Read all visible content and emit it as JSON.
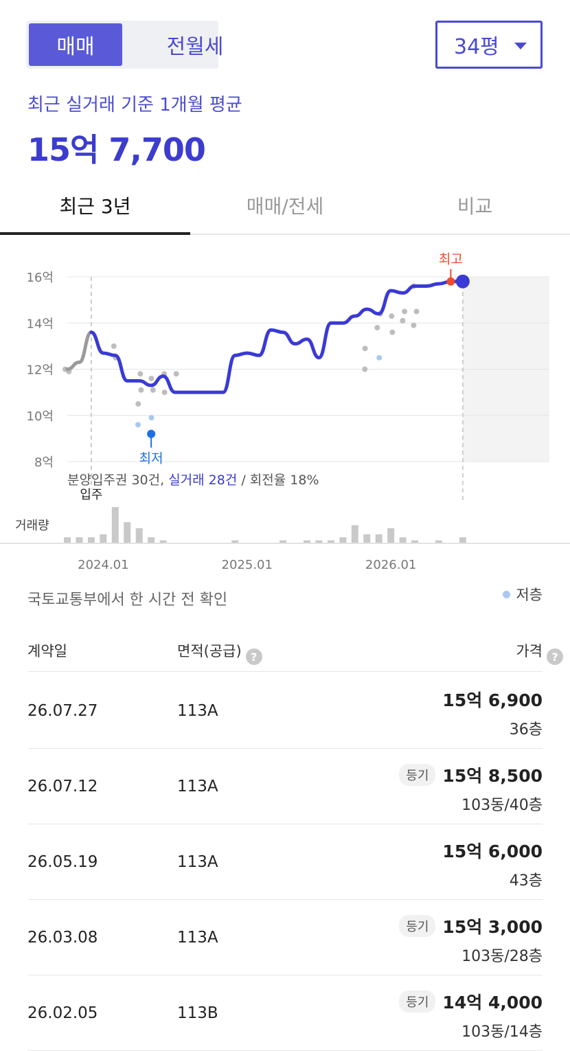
{
  "trade_type": {
    "active": "매매",
    "inactive": "전월세"
  },
  "size_select": {
    "value": "34평"
  },
  "summary": {
    "label": "최근 실거래 기준 1개월 평균",
    "value": "15억 7,700"
  },
  "tabs": [
    "최근 3년",
    "매매/전세",
    "비교"
  ],
  "chart_data": {
    "type": "line",
    "y_unit": "억",
    "ylim": [
      8,
      16
    ],
    "y_ticks": [
      "16억",
      "14억",
      "12억",
      "10억",
      "8억"
    ],
    "x_ticks": [
      "2024.01",
      "2025.01",
      "2026.01"
    ],
    "series": [
      {
        "x": [
          "2023-10",
          "2023-11",
          "2023-12",
          "2024-01",
          "2024-02",
          "2024-03",
          "2024-04",
          "2024-05",
          "2024-06",
          "2024-07",
          "2024-08",
          "2024-09",
          "2024-10",
          "2024-11",
          "2024-12",
          "2025-01",
          "2025-02",
          "2025-03",
          "2025-04",
          "2025-05",
          "2025-06",
          "2025-07",
          "2025-08",
          "2025-09",
          "2025-10",
          "2025-11",
          "2025-12",
          "2026-01",
          "2026-02",
          "2026-03",
          "2026-04",
          "2026-05",
          "2026-06",
          "2026-07"
        ],
        "values": [
          12.0,
          12.3,
          13.6,
          12.7,
          12.6,
          11.5,
          11.5,
          11.3,
          11.7,
          11.0,
          11.0,
          11.0,
          11.0,
          11.0,
          12.6,
          12.7,
          12.6,
          13.7,
          13.6,
          13.1,
          13.3,
          12.5,
          14.0,
          14.0,
          14.3,
          14.6,
          14.4,
          15.4,
          15.3,
          15.6,
          15.6,
          15.7,
          15.8,
          15.8
        ]
      }
    ],
    "max_label": "최고",
    "min_label": "최저",
    "min_value": 9.2,
    "max_value": 15.8,
    "move_in_label": "입주",
    "transactions": [
      {
        "x": "2023-10",
        "y": 11.9,
        "low": false
      },
      {
        "x": "2023-10",
        "y": 12.0,
        "low": false
      },
      {
        "x": "2024-02",
        "y": 12.5,
        "low": false
      },
      {
        "x": "2024-02",
        "y": 13.0,
        "low": false
      },
      {
        "x": "2024-04",
        "y": 11.8,
        "low": false
      },
      {
        "x": "2024-04",
        "y": 11.1,
        "low": false
      },
      {
        "x": "2024-04",
        "y": 10.5,
        "low": false
      },
      {
        "x": "2024-04",
        "y": 9.6,
        "low": true
      },
      {
        "x": "2024-05",
        "y": 11.6,
        "low": false
      },
      {
        "x": "2024-05",
        "y": 11.1,
        "low": false
      },
      {
        "x": "2024-05",
        "y": 9.9,
        "low": true
      },
      {
        "x": "2024-06",
        "y": 11.8,
        "low": false
      },
      {
        "x": "2024-06",
        "y": 11.0,
        "low": false
      },
      {
        "x": "2024-07",
        "y": 11.8,
        "low": false
      },
      {
        "x": "2025-11",
        "y": 12.0,
        "low": false
      },
      {
        "x": "2025-11",
        "y": 12.9,
        "low": false
      },
      {
        "x": "2025-12",
        "y": 14.4,
        "low": false
      },
      {
        "x": "2025-12",
        "y": 13.8,
        "low": false
      },
      {
        "x": "2025-12",
        "y": 12.5,
        "low": true
      },
      {
        "x": "2026-01",
        "y": 14.3,
        "low": false
      },
      {
        "x": "2026-01",
        "y": 13.6,
        "low": false
      },
      {
        "x": "2026-02",
        "y": 14.5,
        "low": false
      },
      {
        "x": "2026-02",
        "y": 14.1,
        "low": false
      },
      {
        "x": "2026-03",
        "y": 15.6,
        "low": false
      },
      {
        "x": "2026-03",
        "y": 14.5,
        "low": false
      },
      {
        "x": "2026-03",
        "y": 13.9,
        "low": false
      }
    ],
    "summary_parts": [
      "분양입주권 30건, ",
      "실거래 28건",
      " / 회전율 18%"
    ],
    "volume_label": "거래량",
    "volume": [
      2,
      2,
      2,
      3,
      12,
      7,
      5,
      2,
      1,
      0,
      0,
      0,
      0,
      0,
      1,
      0,
      0,
      0,
      1,
      0,
      1,
      1,
      1,
      2,
      6,
      3,
      3,
      5,
      2,
      1,
      0,
      1,
      0,
      2
    ]
  },
  "source_text": "국토교통부에서 한 시간 전 확인",
  "legend": {
    "low_floor": "저층"
  },
  "table": {
    "headers": {
      "date": "계약일",
      "area": "면적(공급)",
      "price": "가격"
    },
    "rows": [
      {
        "date": "26.07.27",
        "area": "113A",
        "price": "15억 6,900",
        "floor": "36층",
        "badge": ""
      },
      {
        "date": "26.07.12",
        "area": "113A",
        "price": "15억 8,500",
        "floor": "103동/40층",
        "badge": "등기"
      },
      {
        "date": "26.05.19",
        "area": "113A",
        "price": "15억 6,000",
        "floor": "43층",
        "badge": ""
      },
      {
        "date": "26.03.08",
        "area": "113A",
        "price": "15억 3,000",
        "floor": "103동/28층",
        "badge": "등기"
      },
      {
        "date": "26.02.05",
        "area": "113B",
        "price": "14억 4,000",
        "floor": "103동/14층",
        "badge": "등기"
      }
    ]
  },
  "colors": {
    "accent": "#3c3cd0",
    "line": "#3a3ad6",
    "max": "#ef4b2e",
    "min": "#1f6fe8",
    "low_dot": "#a9c9ef"
  }
}
